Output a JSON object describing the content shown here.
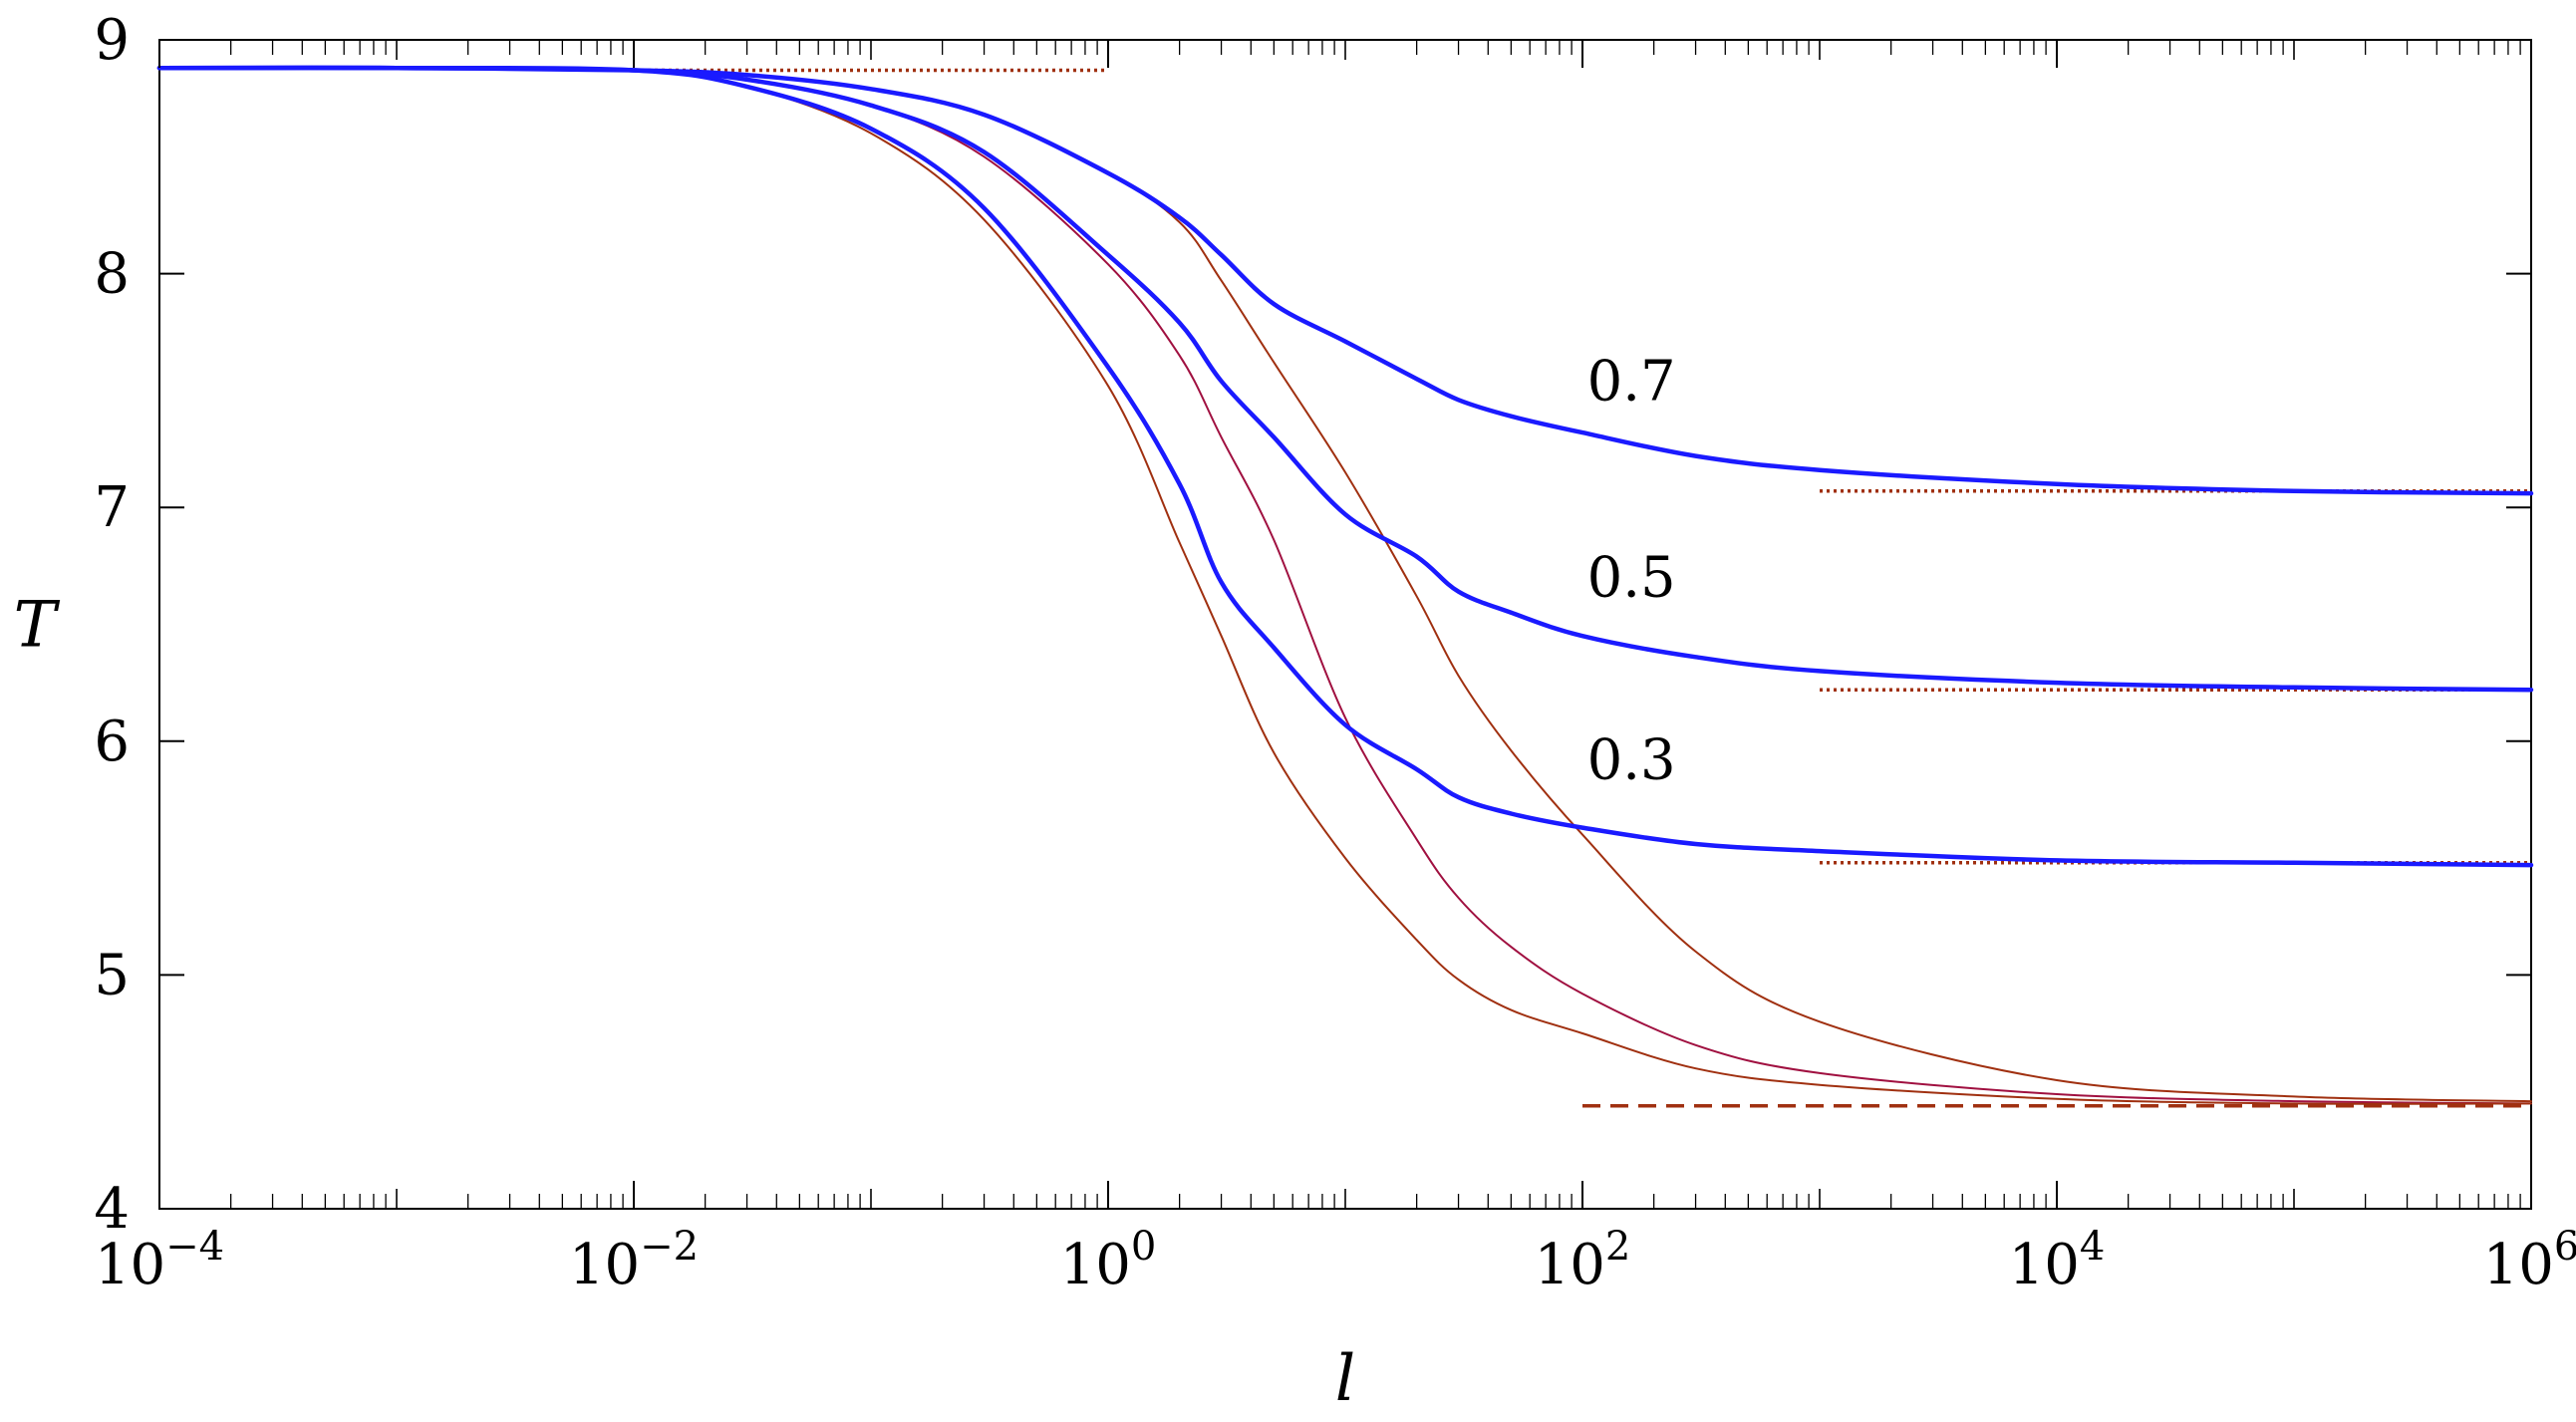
{
  "chart_data": {
    "type": "line",
    "xlabel": "l",
    "ylabel": "T",
    "xscale": "log",
    "xlim": [
      0.0001,
      1000000
    ],
    "ylim": [
      4,
      9
    ],
    "x_ticks": [
      {
        "value": 0.0001,
        "base": "10",
        "exp": "−4"
      },
      {
        "value": 0.01,
        "base": "10",
        "exp": "−2"
      },
      {
        "value": 1,
        "base": "10",
        "exp": "0"
      },
      {
        "value": 100,
        "base": "10",
        "exp": "2"
      },
      {
        "value": 10000,
        "base": "10",
        "exp": "4"
      },
      {
        "value": 1000000,
        "base": "10",
        "exp": "6"
      }
    ],
    "y_ticks": [
      {
        "value": 4,
        "label": "4"
      },
      {
        "value": 5,
        "label": "5"
      },
      {
        "value": 6,
        "label": "6"
      },
      {
        "value": 7,
        "label": "7"
      },
      {
        "value": 8,
        "label": "8"
      },
      {
        "value": 9,
        "label": "9"
      }
    ],
    "grid": false,
    "series": [
      {
        "label": "0.7",
        "label_pos": [
          90,
          7.46
        ],
        "color": "#1a1aff",
        "style": "solid-thick",
        "x": [
          0.0001,
          0.001,
          0.01,
          0.03,
          0.1,
          0.3,
          1,
          2,
          3,
          5,
          10,
          20,
          30,
          50,
          100,
          300,
          1000,
          10000,
          100000,
          1000000
        ],
        "y": [
          8.88,
          8.88,
          8.87,
          8.85,
          8.79,
          8.68,
          8.43,
          8.24,
          8.08,
          7.87,
          7.71,
          7.55,
          7.46,
          7.39,
          7.32,
          7.22,
          7.16,
          7.1,
          7.07,
          7.06
        ]
      },
      {
        "label": "0.5",
        "label_pos": [
          90,
          6.62
        ],
        "color": "#1a1aff",
        "style": "solid-thick",
        "x": [
          0.0001,
          0.001,
          0.01,
          0.03,
          0.1,
          0.3,
          1,
          2,
          3,
          5,
          10,
          20,
          30,
          50,
          100,
          300,
          1000,
          10000,
          100000,
          1000000
        ],
        "y": [
          8.88,
          8.88,
          8.87,
          8.83,
          8.72,
          8.52,
          8.08,
          7.79,
          7.54,
          7.3,
          6.97,
          6.79,
          6.64,
          6.55,
          6.45,
          6.36,
          6.3,
          6.25,
          6.23,
          6.22
        ]
      },
      {
        "label": "0.3",
        "label_pos": [
          90,
          5.84
        ],
        "color": "#1a1aff",
        "style": "solid-thick",
        "x": [
          0.0001,
          0.001,
          0.01,
          0.03,
          0.1,
          0.3,
          1,
          2,
          3,
          5,
          10,
          20,
          30,
          50,
          100,
          300,
          1000,
          10000,
          100000,
          1000000
        ],
        "y": [
          8.88,
          8.88,
          8.87,
          8.8,
          8.62,
          8.28,
          7.6,
          7.1,
          6.68,
          6.4,
          6.07,
          5.88,
          5.76,
          5.69,
          5.63,
          5.56,
          5.53,
          5.49,
          5.48,
          5.47
        ]
      },
      {
        "color": "#a03010",
        "style": "solid-thin",
        "x": [
          0.0001,
          0.001,
          0.01,
          0.03,
          0.1,
          0.3,
          1,
          2,
          3,
          5,
          10,
          20,
          30,
          50,
          100,
          300,
          1000,
          10000,
          100000,
          1000000
        ],
        "y": [
          8.88,
          8.88,
          8.87,
          8.85,
          8.79,
          8.68,
          8.43,
          8.22,
          7.97,
          7.62,
          7.15,
          6.62,
          6.28,
          5.96,
          5.6,
          5.1,
          4.8,
          4.55,
          4.48,
          4.46
        ]
      },
      {
        "color": "#a01040",
        "style": "solid-thin",
        "x": [
          0.0001,
          0.001,
          0.01,
          0.03,
          0.1,
          0.3,
          1,
          2,
          3,
          5,
          10,
          20,
          30,
          50,
          100,
          300,
          1000,
          10000,
          100000,
          1000000
        ],
        "y": [
          8.88,
          8.88,
          8.87,
          8.83,
          8.72,
          8.5,
          8.04,
          7.65,
          7.3,
          6.86,
          6.1,
          5.58,
          5.33,
          5.12,
          4.92,
          4.7,
          4.58,
          4.49,
          4.46,
          4.45
        ]
      },
      {
        "color": "#a03010",
        "style": "solid-thin",
        "x": [
          0.0001,
          0.001,
          0.01,
          0.03,
          0.1,
          0.3,
          1,
          2,
          3,
          5,
          10,
          20,
          30,
          50,
          100,
          300,
          1000,
          10000,
          100000,
          1000000
        ],
        "y": [
          8.88,
          8.88,
          8.87,
          8.8,
          8.6,
          8.23,
          7.52,
          6.85,
          6.45,
          5.95,
          5.5,
          5.15,
          4.98,
          4.85,
          4.75,
          4.6,
          4.53,
          4.47,
          4.45,
          4.45
        ]
      }
    ],
    "reference_lines": [
      {
        "y": 8.87,
        "x": [
          0.01,
          1
        ],
        "color": "#a03010",
        "style": "dotted"
      },
      {
        "y": 7.07,
        "x": [
          1000,
          1000000
        ],
        "color": "#a03010",
        "style": "dotted"
      },
      {
        "y": 6.22,
        "x": [
          1000,
          1000000
        ],
        "color": "#a03010",
        "style": "dotted"
      },
      {
        "y": 5.48,
        "x": [
          1000,
          1000000
        ],
        "color": "#a03010",
        "style": "dotted"
      },
      {
        "y": 4.44,
        "x": [
          100,
          1000000
        ],
        "color": "#a03010",
        "style": "dashed"
      }
    ]
  }
}
